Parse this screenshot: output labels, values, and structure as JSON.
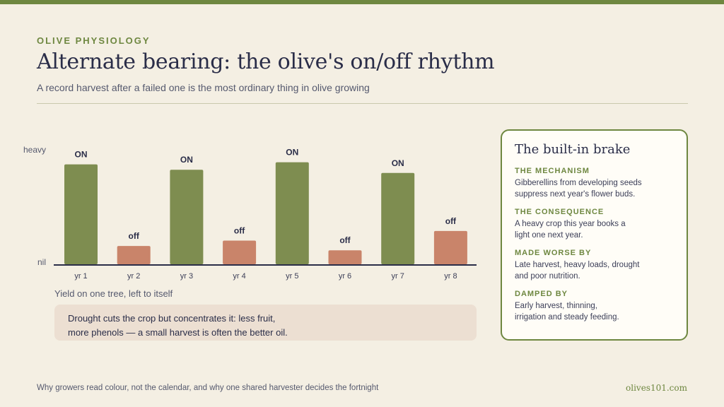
{
  "header": {
    "eyebrow": "OLIVE PHYSIOLOGY",
    "title": "Alternate bearing: the olive's on/off rhythm",
    "subtitle": "A record harvest after a failed one is the most ordinary thing in olive growing"
  },
  "chart_data": {
    "type": "bar",
    "categories": [
      "yr 1",
      "yr 2",
      "yr 3",
      "yr 4",
      "yr 5",
      "yr 6",
      "yr 7",
      "yr 8"
    ],
    "values": [
      0.93,
      0.17,
      0.88,
      0.22,
      0.95,
      0.13,
      0.85,
      0.31
    ],
    "data_labels": [
      "ON",
      "off",
      "ON",
      "off",
      "ON",
      "off",
      "ON",
      "off"
    ],
    "ylim": [
      0,
      1
    ],
    "y_tick_labels": {
      "top": "heavy",
      "bottom": "nil"
    },
    "xlabel": "Yield on one tree, left to itself",
    "colors": {
      "on": "#7e8d50",
      "off": "#c9846a",
      "axis": "#2a2d48"
    },
    "grid": false
  },
  "note": {
    "text": "Drought cuts the crop but concentrates it: less fruit,\nmore phenols — a small harvest is often the better oil."
  },
  "panel": {
    "title": "The built-in brake",
    "sections": [
      {
        "heading": "THE MECHANISM",
        "body": "Gibberellins from developing seeds\nsuppress next year's flower buds."
      },
      {
        "heading": "THE CONSEQUENCE",
        "body": "A heavy crop this year books a\nlight one next year."
      },
      {
        "heading": "MADE WORSE BY",
        "body": "Late harvest, heavy loads, drought\nand poor nutrition."
      },
      {
        "heading": "DAMPED BY",
        "body": "Early harvest, thinning,\nirrigation and steady feeding."
      }
    ]
  },
  "footer": {
    "left": "Why growers read colour, not the calendar, and why one shared harvester decides the fortnight",
    "right": "olives101.com"
  }
}
